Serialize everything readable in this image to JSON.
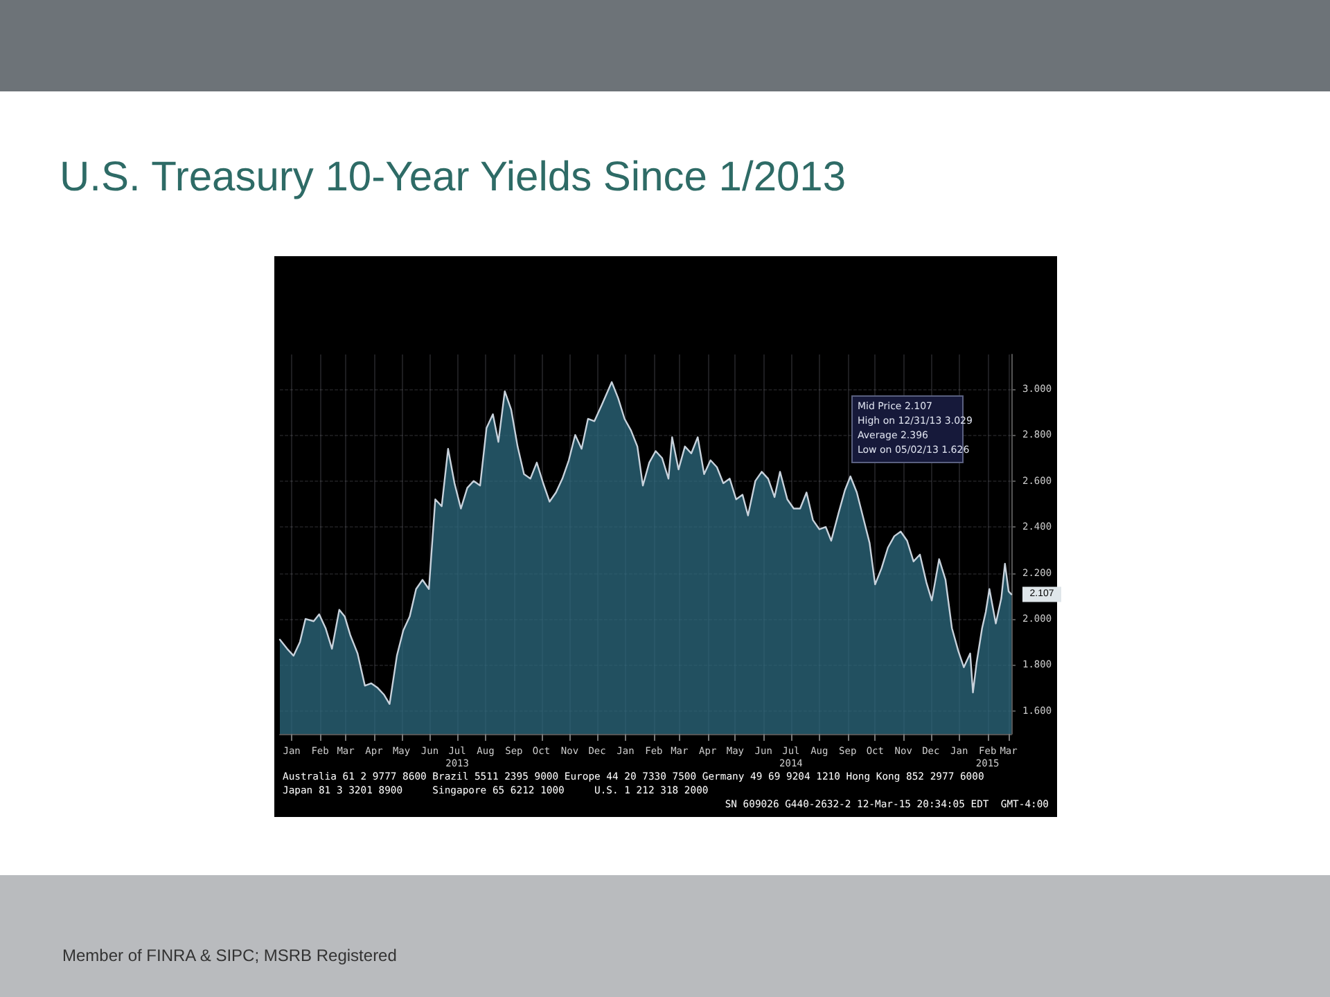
{
  "chart_data": {
    "type": "area",
    "title": "U.S. Treasury 10-Year Yields Since 1/2013",
    "x": [
      "2013-01-02",
      "2013-01-10",
      "2013-01-17",
      "2013-01-24",
      "2013-01-30",
      "2013-02-08",
      "2013-02-14",
      "2013-02-21",
      "2013-02-28",
      "2013-03-08",
      "2013-03-14",
      "2013-03-20",
      "2013-03-28",
      "2013-04-05",
      "2013-04-12",
      "2013-04-19",
      "2013-04-26",
      "2013-05-02",
      "2013-05-10",
      "2013-05-17",
      "2013-05-24",
      "2013-05-31",
      "2013-06-07",
      "2013-06-14",
      "2013-06-21",
      "2013-06-28",
      "2013-07-05",
      "2013-07-12",
      "2013-07-19",
      "2013-07-26",
      "2013-08-02",
      "2013-08-09",
      "2013-08-16",
      "2013-08-23",
      "2013-08-29",
      "2013-09-05",
      "2013-09-12",
      "2013-09-19",
      "2013-09-26",
      "2013-10-03",
      "2013-10-10",
      "2013-10-17",
      "2013-10-24",
      "2013-10-31",
      "2013-11-07",
      "2013-11-14",
      "2013-11-21",
      "2013-11-28",
      "2013-12-05",
      "2013-12-12",
      "2013-12-20",
      "2013-12-31",
      "2014-01-07",
      "2014-01-14",
      "2014-01-21",
      "2014-01-28",
      "2014-02-03",
      "2014-02-10",
      "2014-02-17",
      "2014-02-24",
      "2014-03-03",
      "2014-03-07",
      "2014-03-14",
      "2014-03-21",
      "2014-03-28",
      "2014-04-04",
      "2014-04-11",
      "2014-04-18",
      "2014-04-25",
      "2014-05-02",
      "2014-05-09",
      "2014-05-16",
      "2014-05-23",
      "2014-05-29",
      "2014-06-06",
      "2014-06-13",
      "2014-06-20",
      "2014-06-27",
      "2014-07-03",
      "2014-07-11",
      "2014-07-18",
      "2014-07-25",
      "2014-08-01",
      "2014-08-08",
      "2014-08-15",
      "2014-08-22",
      "2014-08-28",
      "2014-09-05",
      "2014-09-12",
      "2014-09-18",
      "2014-09-25",
      "2014-10-02",
      "2014-10-09",
      "2014-10-15",
      "2014-10-22",
      "2014-10-29",
      "2014-11-05",
      "2014-11-12",
      "2014-11-19",
      "2014-11-26",
      "2014-12-03",
      "2014-12-10",
      "2014-12-16",
      "2014-12-24",
      "2014-12-31",
      "2015-01-07",
      "2015-01-14",
      "2015-01-20",
      "2015-01-27",
      "2015-01-30",
      "2015-02-03",
      "2015-02-09",
      "2015-02-13",
      "2015-02-17",
      "2015-02-24",
      "2015-03-02",
      "2015-03-06",
      "2015-03-10",
      "2015-03-13"
    ],
    "series": [
      {
        "color": "#c8d2dc",
        "values": [
          1.91,
          1.87,
          1.84,
          1.9,
          2.0,
          1.99,
          2.02,
          1.96,
          1.87,
          2.04,
          2.01,
          1.93,
          1.85,
          1.71,
          1.72,
          1.7,
          1.67,
          1.63,
          1.84,
          1.95,
          2.01,
          2.13,
          2.17,
          2.13,
          2.52,
          2.49,
          2.74,
          2.59,
          2.48,
          2.57,
          2.6,
          2.58,
          2.83,
          2.89,
          2.77,
          2.99,
          2.91,
          2.75,
          2.63,
          2.61,
          2.68,
          2.59,
          2.51,
          2.55,
          2.61,
          2.69,
          2.8,
          2.74,
          2.87,
          2.86,
          2.93,
          3.03,
          2.96,
          2.87,
          2.82,
          2.75,
          2.58,
          2.68,
          2.73,
          2.7,
          2.61,
          2.79,
          2.65,
          2.75,
          2.72,
          2.79,
          2.63,
          2.69,
          2.66,
          2.59,
          2.61,
          2.52,
          2.54,
          2.45,
          2.6,
          2.64,
          2.61,
          2.53,
          2.64,
          2.52,
          2.48,
          2.48,
          2.55,
          2.43,
          2.39,
          2.4,
          2.34,
          2.46,
          2.56,
          2.62,
          2.55,
          2.44,
          2.33,
          2.15,
          2.22,
          2.31,
          2.36,
          2.38,
          2.34,
          2.25,
          2.28,
          2.16,
          2.08,
          2.26,
          2.17,
          1.96,
          1.86,
          1.79,
          1.85,
          1.68,
          1.81,
          1.96,
          2.03,
          2.13,
          1.98,
          2.09,
          2.24,
          2.12,
          2.107
        ]
      }
    ],
    "xlim": [
      "2013-01-02",
      "2015-03-13"
    ],
    "xticks": [
      {
        "value": "2013-01-15",
        "label": "Jan"
      },
      {
        "value": "2013-02-15",
        "label": "Feb"
      },
      {
        "value": "2013-03-15",
        "label": "Mar"
      },
      {
        "value": "2013-04-15",
        "label": "Apr"
      },
      {
        "value": "2013-05-15",
        "label": "May"
      },
      {
        "value": "2013-06-15",
        "label": "Jun"
      },
      {
        "value": "2013-07-15",
        "label": "Jul\n2013"
      },
      {
        "value": "2013-08-15",
        "label": "Aug"
      },
      {
        "value": "2013-09-15",
        "label": "Sep"
      },
      {
        "value": "2013-10-15",
        "label": "Oct"
      },
      {
        "value": "2013-11-15",
        "label": "Nov"
      },
      {
        "value": "2013-12-15",
        "label": "Dec"
      },
      {
        "value": "2014-01-15",
        "label": "Jan"
      },
      {
        "value": "2014-02-15",
        "label": "Feb"
      },
      {
        "value": "2014-03-15",
        "label": "Mar"
      },
      {
        "value": "2014-04-15",
        "label": "Apr"
      },
      {
        "value": "2014-05-15",
        "label": "May"
      },
      {
        "value": "2014-06-15",
        "label": "Jun"
      },
      {
        "value": "2014-07-15",
        "label": "Jul\n2014"
      },
      {
        "value": "2014-08-15",
        "label": "Aug"
      },
      {
        "value": "2014-09-15",
        "label": "Sep"
      },
      {
        "value": "2014-10-15",
        "label": "Oct"
      },
      {
        "value": "2014-11-15",
        "label": "Nov"
      },
      {
        "value": "2014-12-15",
        "label": "Dec"
      },
      {
        "value": "2015-01-15",
        "label": "Jan"
      },
      {
        "value": "2015-02-15",
        "label": "Feb\n2015"
      },
      {
        "value": "2015-03-10",
        "label": "Mar"
      }
    ],
    "ylim": [
      1.5,
      3.15
    ],
    "yticks": [
      {
        "value": 1.6,
        "label": "1.600"
      },
      {
        "value": 1.8,
        "label": "1.800"
      },
      {
        "value": 2.0,
        "label": "2.000"
      },
      {
        "value": 2.2,
        "label": "2.200"
      },
      {
        "value": 2.4,
        "label": "2.400"
      },
      {
        "value": 2.6,
        "label": "2.600"
      },
      {
        "value": 2.8,
        "label": "2.800"
      },
      {
        "value": 3.0,
        "label": "3.000"
      }
    ],
    "grid": true,
    "marker": "none",
    "line_style": "solid",
    "annotations": [
      "Mid Price 2.107",
      "High on 12/31/13 3.029",
      "Average 2.396",
      "Low on 05/02/13 1.626",
      {
        "text": "2.107",
        "x": "2015-03-13",
        "y": 2.107
      },
      "Australia 61 2 9777 8600 Brazil 5511 2395 9000 Europe 44 20 7330 7500 Germany 49 69 9204 1210 Hong Kong 852 2977 6000",
      "Japan 81 3 3201 8900     Singapore 65 6212 1000     U.S. 1 212 318 2000",
      "SN 609026 G440-2632-2 12-Mar-15 20:34:05 EDT  GMT-4:00",
      "Member of FINRA & SIPC; MSRB Registered"
    ]
  }
}
